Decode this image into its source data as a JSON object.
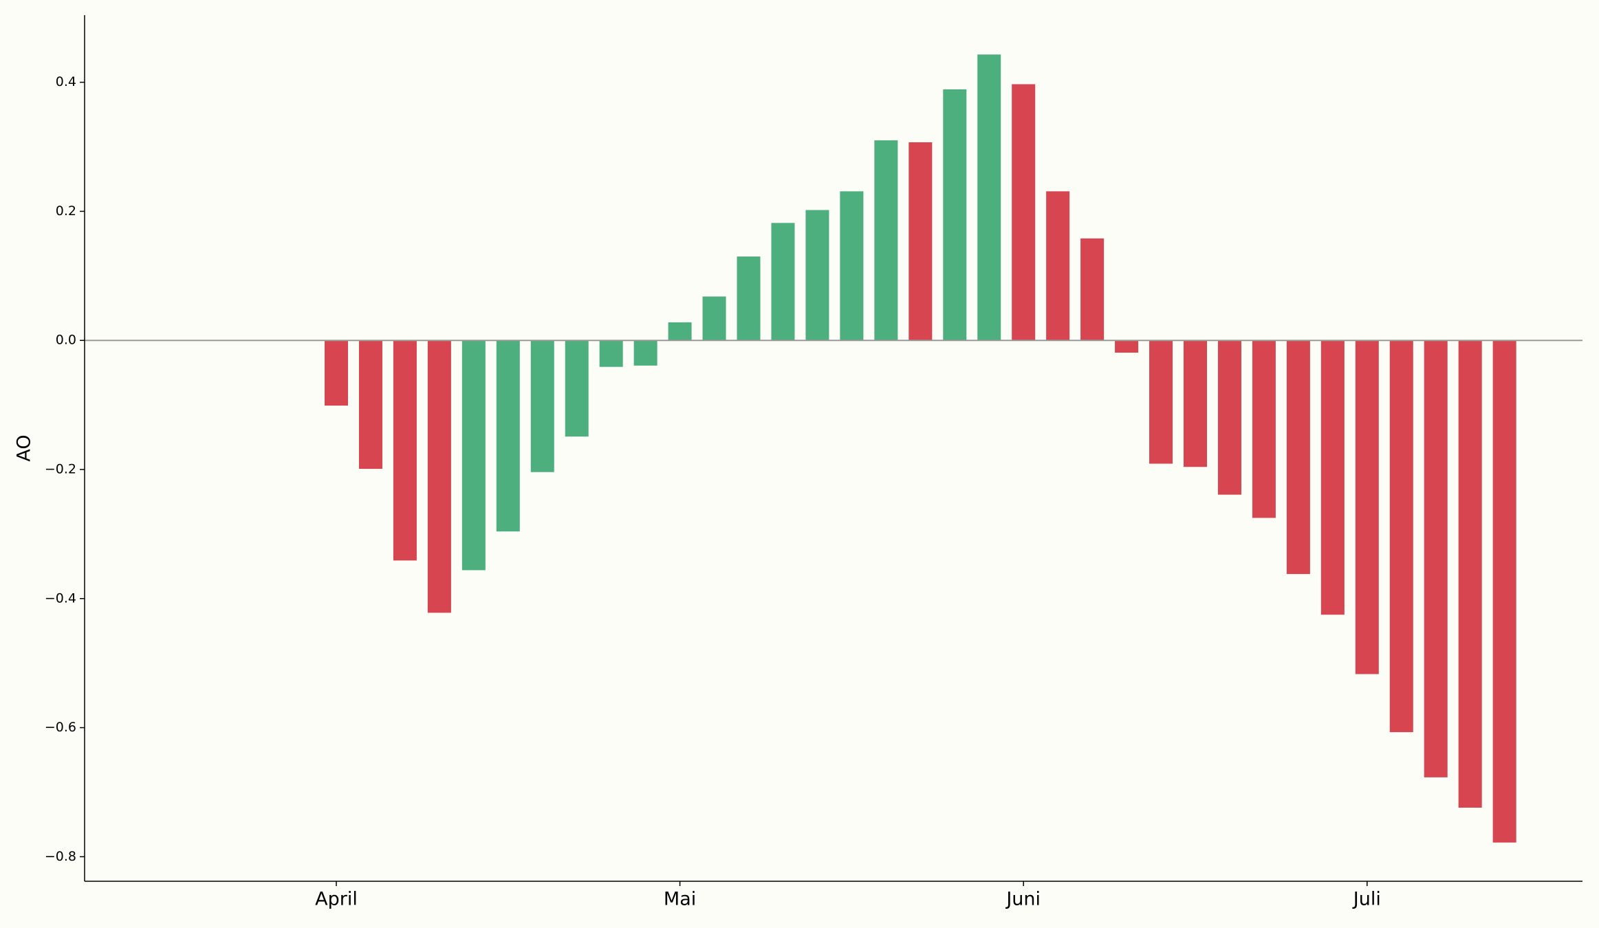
{
  "chart_data": {
    "type": "bar",
    "y_label": "AO",
    "categories": [
      "April",
      null,
      null,
      null,
      null,
      null,
      null,
      null,
      null,
      null,
      "Mai",
      null,
      null,
      null,
      null,
      null,
      null,
      null,
      null,
      null,
      "Juni",
      null,
      null,
      null,
      null,
      null,
      null,
      null,
      null,
      null,
      "Juli",
      null,
      null,
      null,
      null
    ],
    "values": [
      -0.101,
      -0.199,
      -0.341,
      -0.422,
      -0.356,
      -0.296,
      -0.204,
      -0.149,
      -0.041,
      -0.039,
      0.028,
      0.068,
      0.13,
      0.182,
      0.202,
      0.231,
      0.31,
      0.307,
      0.389,
      0.443,
      0.397,
      0.231,
      0.158,
      -0.019,
      -0.191,
      -0.196,
      -0.239,
      -0.275,
      -0.362,
      -0.425,
      -0.517,
      -0.607,
      -0.677,
      -0.724,
      -0.778
    ],
    "colors": [
      "#d64550",
      "#d64550",
      "#d64550",
      "#d64550",
      "#4caf7d",
      "#4caf7d",
      "#4caf7d",
      "#4caf7d",
      "#4caf7d",
      "#4caf7d",
      "#4caf7d",
      "#4caf7d",
      "#4caf7d",
      "#4caf7d",
      "#4caf7d",
      "#4caf7d",
      "#4caf7d",
      "#d64550",
      "#4caf7d",
      "#4caf7d",
      "#d64550",
      "#d64550",
      "#d64550",
      "#d64550",
      "#d64550",
      "#d64550",
      "#d64550",
      "#d64550",
      "#d64550",
      "#d64550",
      "#d64550",
      "#d64550",
      "#d64550",
      "#d64550",
      "#d64550"
    ],
    "ylim": [
      -0.838,
      0.504
    ],
    "yticks": [
      {
        "value": -0.8,
        "label": "−0.8"
      },
      {
        "value": -0.6,
        "label": "−0.6"
      },
      {
        "value": -0.4,
        "label": "−0.4"
      },
      {
        "value": -0.2,
        "label": "−0.2"
      },
      {
        "value": 0,
        "label": "0.0"
      },
      0.2,
      0.4
    ],
    "grid": false
  }
}
